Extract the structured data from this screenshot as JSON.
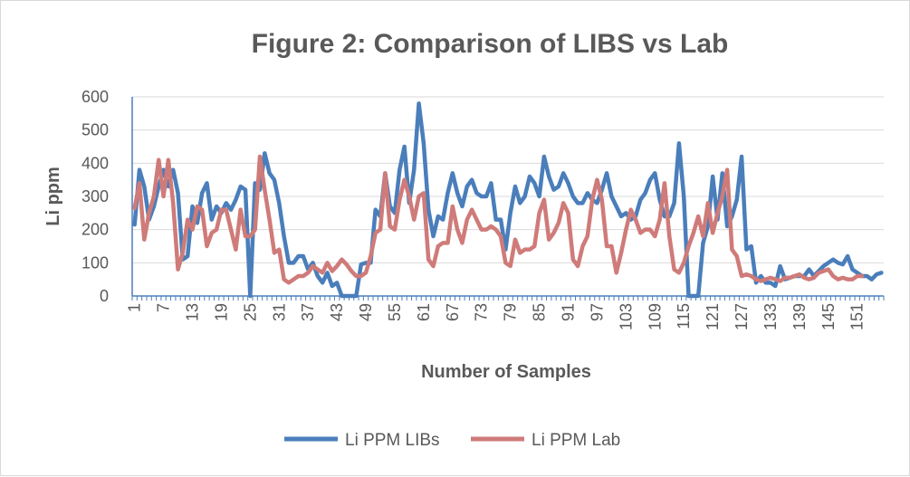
{
  "chart_data": {
    "type": "line",
    "title": "Figure 2: Comparison of LIBS vs Lab",
    "xlabel": "Number of Samples",
    "ylabel": "Li ppm",
    "ylim": [
      0,
      600
    ],
    "yticks": [
      0,
      100,
      200,
      300,
      400,
      500,
      600
    ],
    "xticks": [
      1,
      7,
      13,
      19,
      25,
      31,
      37,
      43,
      49,
      55,
      61,
      67,
      73,
      79,
      85,
      91,
      97,
      103,
      109,
      115,
      121,
      127,
      133,
      139,
      145,
      151
    ],
    "grid": "horizontal",
    "legend_position": "bottom",
    "series": [
      {
        "name": "Li PPM LIBs",
        "color": "#4a7ebb",
        "values": [
          215,
          380,
          330,
          230,
          270,
          330,
          380,
          330,
          380,
          310,
          110,
          120,
          270,
          220,
          310,
          340,
          230,
          270,
          250,
          280,
          260,
          290,
          330,
          320,
          0,
          340,
          320,
          430,
          370,
          350,
          280,
          180,
          100,
          100,
          120,
          120,
          80,
          100,
          60,
          40,
          70,
          30,
          40,
          0,
          0,
          0,
          0,
          95,
          100,
          100,
          260,
          240,
          370,
          270,
          250,
          380,
          450,
          280,
          380,
          580,
          460,
          260,
          180,
          240,
          230,
          310,
          370,
          310,
          270,
          330,
          350,
          310,
          300,
          300,
          340,
          230,
          230,
          140,
          250,
          330,
          280,
          300,
          360,
          340,
          300,
          420,
          360,
          320,
          330,
          370,
          340,
          300,
          280,
          280,
          310,
          290,
          280,
          320,
          370,
          300,
          270,
          240,
          250,
          230,
          240,
          290,
          310,
          350,
          370,
          290,
          240,
          240,
          280,
          460,
          300,
          0,
          0,
          0,
          160,
          210,
          360,
          230,
          370,
          210,
          240,
          290,
          420,
          140,
          150,
          40,
          60,
          40,
          40,
          30,
          90,
          50,
          55,
          60,
          60,
          60,
          80,
          60,
          75,
          90,
          100,
          110,
          100,
          95,
          120,
          80,
          70,
          60,
          60,
          50,
          65,
          70
        ]
      },
      {
        "name": "Li PPM Lab",
        "color": "#cf7b79",
        "values": [
          265,
          340,
          170,
          250,
          300,
          410,
          300,
          410,
          280,
          80,
          130,
          230,
          200,
          270,
          260,
          150,
          190,
          200,
          260,
          260,
          200,
          140,
          260,
          180,
          180,
          200,
          420,
          320,
          230,
          130,
          140,
          50,
          40,
          50,
          60,
          60,
          70,
          90,
          80,
          70,
          100,
          75,
          90,
          110,
          95,
          75,
          60,
          60,
          70,
          120,
          190,
          200,
          370,
          210,
          200,
          290,
          350,
          300,
          230,
          300,
          310,
          110,
          90,
          150,
          160,
          160,
          270,
          200,
          160,
          230,
          260,
          230,
          200,
          200,
          210,
          200,
          180,
          100,
          90,
          170,
          130,
          140,
          140,
          150,
          250,
          290,
          170,
          190,
          220,
          280,
          250,
          110,
          90,
          150,
          180,
          290,
          350,
          290,
          150,
          150,
          70,
          130,
          200,
          260,
          230,
          190,
          200,
          200,
          180,
          230,
          340,
          180,
          80,
          70,
          100,
          150,
          190,
          240,
          180,
          280,
          190,
          250,
          300,
          380,
          140,
          120,
          60,
          65,
          60,
          50,
          45,
          50,
          55,
          50,
          45,
          55,
          55,
          60,
          65,
          55,
          50,
          55,
          70,
          75,
          80,
          60,
          50,
          55,
          50,
          50,
          60,
          60
        ]
      }
    ]
  }
}
